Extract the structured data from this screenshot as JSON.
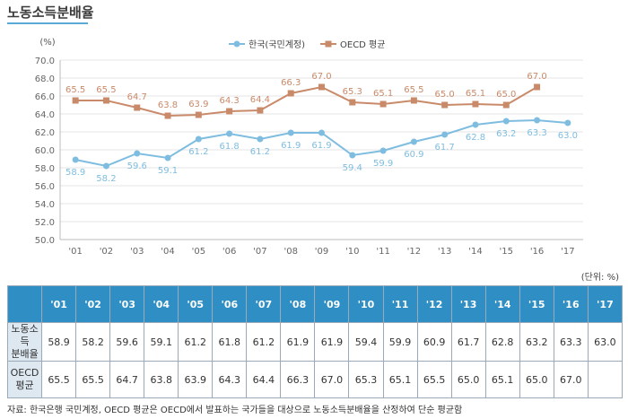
{
  "page": {
    "title": "노동소득분배율",
    "unit": "(단위: %)",
    "footnote": "자료: 한국은행 국민계정,  OECD 평균은 OECD에서 발표하는 국가들을 대상으로 노동소득분배율을 산정하여 단순 평균함"
  },
  "chart_data": {
    "type": "line",
    "ylabel": "(%)",
    "ylim": [
      50.0,
      70.0
    ],
    "ytick_step": 2.0,
    "categories": [
      "'01",
      "'02",
      "'03",
      "'04",
      "'05",
      "'06",
      "'07",
      "'08",
      "'09",
      "'10",
      "'11",
      "'12",
      "'13",
      "'14",
      "'15",
      "'16",
      "'17"
    ],
    "series": [
      {
        "name": "한국(국민계정)",
        "color": "#7fbde0",
        "marker": "circle",
        "values": [
          58.9,
          58.2,
          59.6,
          59.1,
          61.2,
          61.8,
          61.2,
          61.9,
          61.9,
          59.4,
          59.9,
          60.9,
          61.7,
          62.8,
          63.2,
          63.3,
          63.0
        ]
      },
      {
        "name": "OECD 평균",
        "color": "#c98a6a",
        "marker": "square",
        "values": [
          65.5,
          65.5,
          64.7,
          63.8,
          63.9,
          64.3,
          64.4,
          66.3,
          67.0,
          65.3,
          65.1,
          65.5,
          65.0,
          65.1,
          65.0,
          67.0,
          null
        ]
      }
    ],
    "legend": "top-center",
    "grid": true
  },
  "table": {
    "headers": [
      "'01",
      "'02",
      "'03",
      "'04",
      "'05",
      "'06",
      "'07",
      "'08",
      "'09",
      "'10",
      "'11",
      "'12",
      "'13",
      "'14",
      "'15",
      "'16",
      "'17"
    ],
    "rows": [
      {
        "label_line1": "노동소득",
        "label_line2": "분배율",
        "values": [
          "58.9",
          "58.2",
          "59.6",
          "59.1",
          "61.2",
          "61.8",
          "61.2",
          "61.9",
          "61.9",
          "59.4",
          "59.9",
          "60.9",
          "61.7",
          "62.8",
          "63.2",
          "63.3",
          "63.0"
        ]
      },
      {
        "label_line1": "OECD",
        "label_line2": "평균",
        "values": [
          "65.5",
          "65.5",
          "64.7",
          "63.8",
          "63.9",
          "64.3",
          "64.4",
          "66.3",
          "67.0",
          "65.3",
          "65.1",
          "65.5",
          "65.0",
          "65.1",
          "65.0",
          "67.0",
          ""
        ]
      }
    ]
  }
}
